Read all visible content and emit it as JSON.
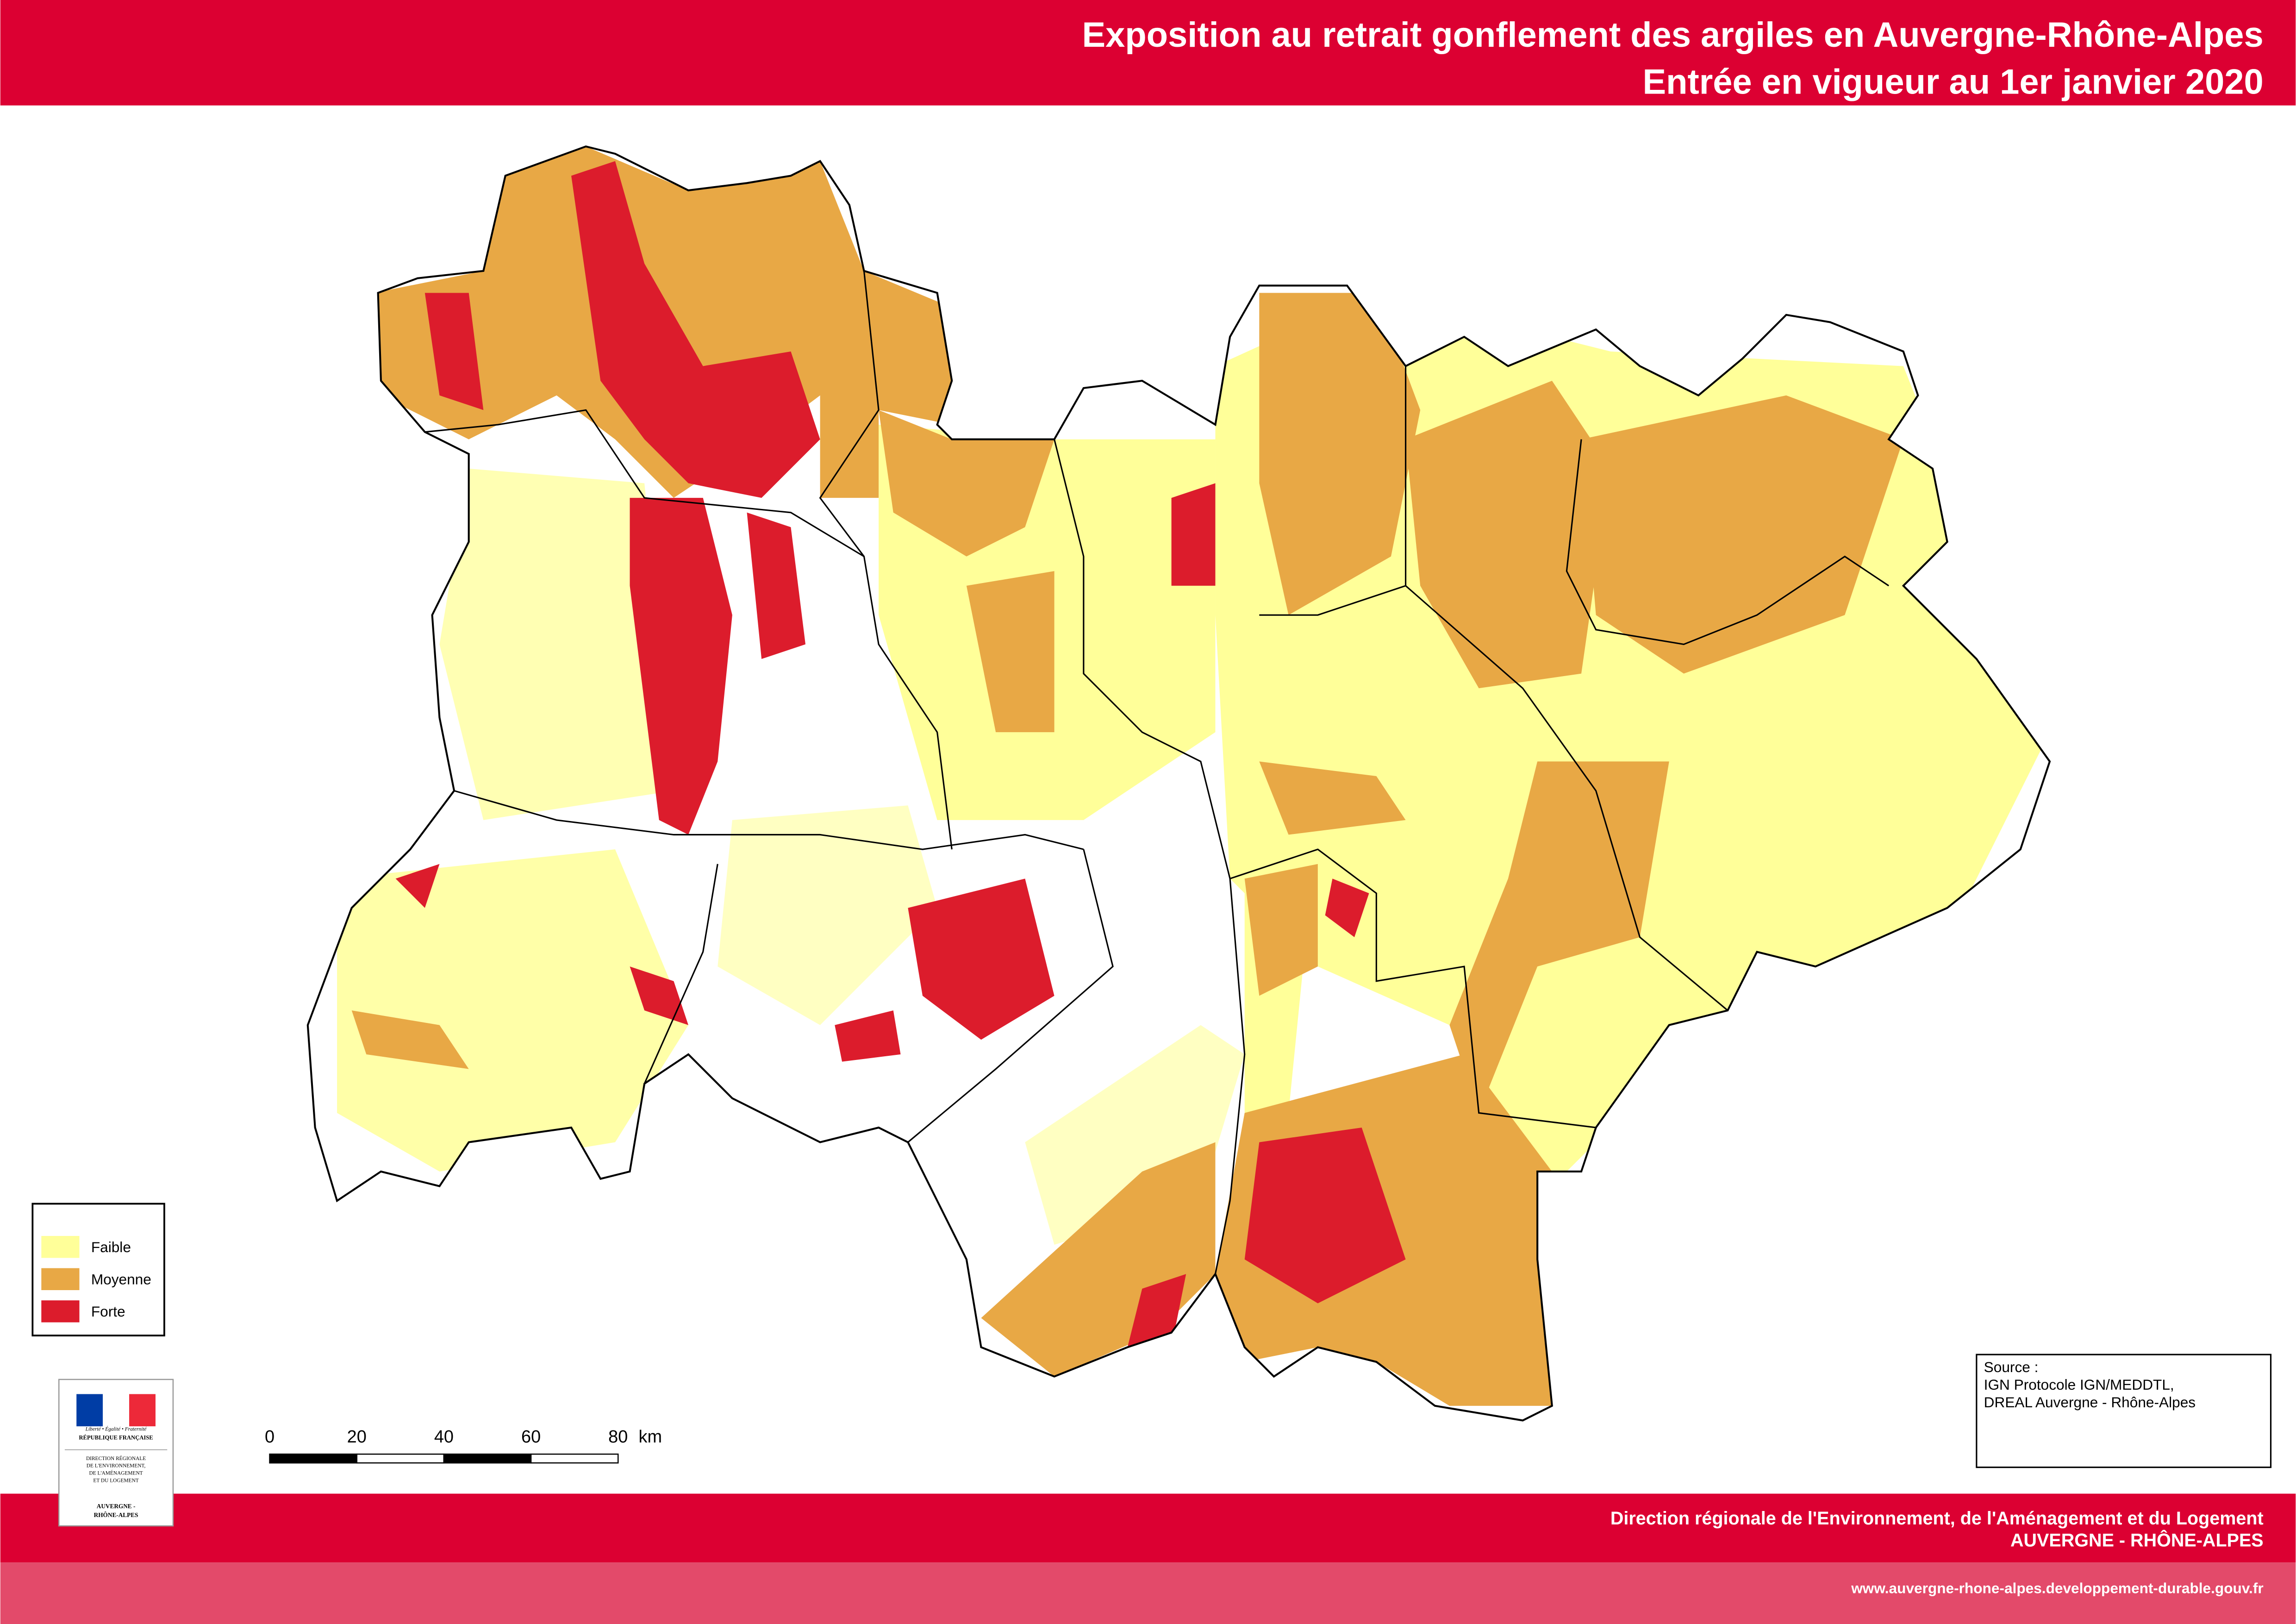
{
  "header": {
    "title": "Exposition au retrait gonflement des argiles en Auvergne-Rhône-Alpes",
    "subtitle": "Entrée en vigueur au 1er janvier 2020"
  },
  "legend": {
    "items": [
      {
        "label": "Faible",
        "color": "#ffff99"
      },
      {
        "label": "Moyenne",
        "color": "#e8a845"
      },
      {
        "label": "Forte",
        "color": "#dc1c2c"
      }
    ]
  },
  "scale_bar": {
    "ticks": [
      "0",
      "20",
      "40",
      "60",
      "80"
    ],
    "unit": "km"
  },
  "source": {
    "title": "Source :",
    "lines": [
      "IGN Protocole IGN/MEDDTL,",
      "DREAL Auvergne - Rhône-Alpes"
    ]
  },
  "logo": {
    "motto": "Liberté • Égalité • Fraternité",
    "republic": "RÉPUBLIQUE FRANÇAISE",
    "lines": [
      "DIRECTION RÉGIONALE",
      "DE L'ENVIRONNEMENT,",
      "DE L'AMÉNAGEMENT",
      "ET DU LOGEMENT"
    ],
    "region_lines": [
      "AUVERGNE -",
      "RHÔNE-ALPES"
    ]
  },
  "footer": {
    "line1": "Direction régionale de l'Environnement, de l'Aménagement et du Logement",
    "line2": "AUVERGNE - RHÔNE-ALPES",
    "url": "www.auvergne-rhone-alpes.developpement-durable.gouv.fr"
  }
}
